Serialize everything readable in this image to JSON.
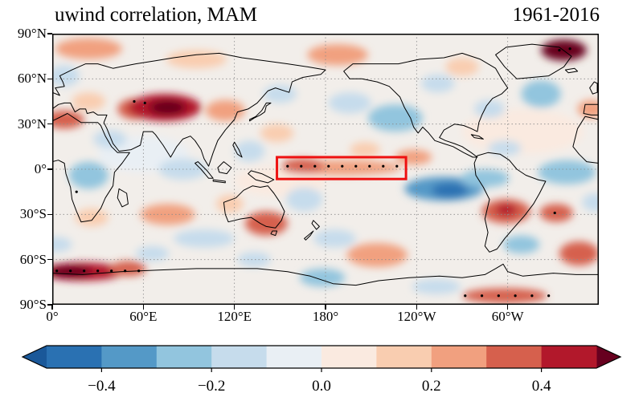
{
  "figure": {
    "title": "uwind correlation, MAM",
    "period": "1961-2016"
  },
  "chart_data": {
    "type": "heatmap",
    "variant": "filled-contour correlation map over world coastlines",
    "title": "uwind correlation, MAM",
    "annotation": "1961-2016",
    "variable": "uwind correlation",
    "season": "MAM",
    "projection": "equirectangular, longitude 0-360E left to right, latitude 90N top to 90S bottom",
    "x_axis": {
      "tick_lons": [
        0,
        60,
        120,
        180,
        240,
        300
      ],
      "tick_labels": [
        "0°",
        "60°E",
        "120°E",
        "180°",
        "120°W",
        "60°W"
      ]
    },
    "y_axis": {
      "tick_lats": [
        90,
        60,
        30,
        0,
        -30,
        -60,
        -90
      ],
      "tick_labels": [
        "90°N",
        "60°N",
        "30°N",
        "0°",
        "30°S",
        "60°S",
        "90°S"
      ]
    },
    "grid": {
      "show": true,
      "style": "dotted",
      "lat_step": 30,
      "lon_step": 60,
      "color": "#8a8a8a"
    },
    "base_color": "#f2eeea",
    "colorbar": {
      "orientation": "horizontal",
      "levels": [
        -0.5,
        -0.4,
        -0.3,
        -0.2,
        -0.1,
        0,
        0.1,
        0.2,
        0.3,
        0.4,
        0.5
      ],
      "colors": [
        "#2a71b2",
        "#5499c7",
        "#92c5de",
        "#c6dcec",
        "#e9eff4",
        "#faeae0",
        "#f9cdb0",
        "#f1a07f",
        "#d6604d",
        "#b2182b"
      ],
      "extend_low": "#1a5899",
      "extend_high": "#67001f",
      "tick_values": [
        -0.4,
        -0.2,
        0.0,
        0.2,
        0.4
      ],
      "tick_labels": [
        "−0.4",
        "−0.2",
        "0.0",
        "0.2",
        "0.4"
      ]
    },
    "highlight_box": {
      "lon_min": 148,
      "lon_max": 233,
      "lat_min": -6.5,
      "lat_max": 8,
      "color": "#ee1111",
      "meaning": "equatorial Pacific region outlined in red with stippled points inside"
    },
    "features": [
      {
        "lon": 310,
        "lat": 25,
        "rx": 40,
        "ry": 15,
        "v": 0.05
      },
      {
        "lon": 150,
        "lat": -8,
        "rx": 30,
        "ry": 10,
        "v": 0.08
      },
      {
        "lon": 60,
        "lat": 10,
        "rx": 30,
        "ry": 12,
        "v": -0.08
      },
      {
        "lon": 8,
        "lat": 33,
        "rx": 13,
        "ry": 6,
        "v": 0.35
      },
      {
        "lon": 24,
        "lat": 45,
        "rx": 11,
        "ry": 6,
        "v": 0.18
      },
      {
        "lon": 55,
        "lat": 40,
        "rx": 12,
        "ry": 7,
        "v": 0.3
      },
      {
        "lon": 74,
        "lat": 41,
        "rx": 24,
        "ry": 9,
        "v": 0.4
      },
      {
        "lon": 76,
        "lat": 41,
        "rx": 12,
        "ry": 5,
        "v": 0.5
      },
      {
        "lon": 114,
        "lat": 39,
        "rx": 13,
        "ry": 7,
        "v": 0.25
      },
      {
        "lon": 24,
        "lat": 80,
        "rx": 22,
        "ry": 7,
        "v": 0.28
      },
      {
        "lon": 95,
        "lat": 73,
        "rx": 20,
        "ry": 6,
        "v": 0.15
      },
      {
        "lon": 148,
        "lat": 24,
        "rx": 11,
        "ry": 6,
        "v": 0.15
      },
      {
        "lon": 188,
        "lat": 76,
        "rx": 20,
        "ry": 7,
        "v": 0.28
      },
      {
        "lon": 337,
        "lat": 79,
        "rx": 15,
        "ry": 7,
        "v": 0.5
      },
      {
        "lon": 270,
        "lat": 68,
        "rx": 11,
        "ry": 6,
        "v": 0.18
      },
      {
        "lon": 190,
        "lat": 1,
        "rx": 40,
        "ry": 5,
        "v": 0.25
      },
      {
        "lon": 165,
        "lat": 2,
        "rx": 14,
        "ry": 5,
        "v": 0.32
      },
      {
        "lon": 238,
        "lat": 8,
        "rx": 12,
        "ry": 5,
        "v": 0.2
      },
      {
        "lon": 299,
        "lat": -28,
        "rx": 16,
        "ry": 8,
        "v": 0.35
      },
      {
        "lon": 299,
        "lat": -27,
        "rx": 7,
        "ry": 4,
        "v": 0.45
      },
      {
        "lon": 332,
        "lat": -29,
        "rx": 11,
        "ry": 6,
        "v": 0.3
      },
      {
        "lon": 76,
        "lat": -30,
        "rx": 18,
        "ry": 7,
        "v": 0.25
      },
      {
        "lon": 26,
        "lat": -32,
        "rx": 11,
        "ry": 6,
        "v": 0.15
      },
      {
        "lon": 141,
        "lat": -36,
        "rx": 14,
        "ry": 8,
        "v": 0.3
      },
      {
        "lon": 117,
        "lat": -23,
        "rx": 9,
        "ry": 6,
        "v": 0.18
      },
      {
        "lon": 20,
        "lat": -68,
        "rx": 28,
        "ry": 6,
        "v": 0.45
      },
      {
        "lon": 12,
        "lat": -68,
        "rx": 14,
        "ry": 4,
        "v": 0.55
      },
      {
        "lon": 50,
        "lat": -66,
        "rx": 12,
        "ry": 5,
        "v": 0.3
      },
      {
        "lon": 214,
        "lat": -57,
        "rx": 20,
        "ry": 8,
        "v": 0.26
      },
      {
        "lon": 298,
        "lat": -84,
        "rx": 28,
        "ry": 5,
        "v": 0.38
      },
      {
        "lon": 347,
        "lat": -56,
        "rx": 13,
        "ry": 8,
        "v": 0.3
      },
      {
        "lon": 355,
        "lat": 40,
        "rx": 9,
        "ry": 6,
        "v": 0.22
      },
      {
        "lon": 206,
        "lat": 13,
        "rx": 10,
        "ry": 5,
        "v": 0.15
      },
      {
        "lon": 226,
        "lat": 34,
        "rx": 18,
        "ry": 9,
        "v": -0.28
      },
      {
        "lon": 196,
        "lat": 44,
        "rx": 14,
        "ry": 7,
        "v": -0.18
      },
      {
        "lon": 150,
        "lat": 50,
        "rx": 11,
        "ry": 6,
        "v": -0.12
      },
      {
        "lon": 24,
        "lat": -4,
        "rx": 13,
        "ry": 9,
        "v": -0.25
      },
      {
        "lon": 86,
        "lat": 0,
        "rx": 16,
        "ry": 7,
        "v": -0.15
      },
      {
        "lon": 258,
        "lat": -13,
        "rx": 26,
        "ry": 8,
        "v": -0.35
      },
      {
        "lon": 262,
        "lat": -14,
        "rx": 12,
        "ry": 5,
        "v": -0.45
      },
      {
        "lon": 285,
        "lat": -6,
        "rx": 16,
        "ry": 6,
        "v": -0.28
      },
      {
        "lon": 339,
        "lat": -2,
        "rx": 19,
        "ry": 8,
        "v": -0.28
      },
      {
        "lon": 322,
        "lat": 50,
        "rx": 13,
        "ry": 9,
        "v": -0.3
      },
      {
        "lon": 288,
        "lat": 40,
        "rx": 10,
        "ry": 6,
        "v": -0.15
      },
      {
        "lon": 254,
        "lat": 57,
        "rx": 11,
        "ry": 6,
        "v": -0.15
      },
      {
        "lon": 130,
        "lat": 12,
        "rx": 10,
        "ry": 7,
        "v": -0.2
      },
      {
        "lon": 166,
        "lat": -20,
        "rx": 12,
        "ry": 8,
        "v": -0.18
      },
      {
        "lon": 100,
        "lat": -46,
        "rx": 20,
        "ry": 6,
        "v": -0.2
      },
      {
        "lon": 186,
        "lat": -46,
        "rx": 14,
        "ry": 6,
        "v": -0.15
      },
      {
        "lon": 309,
        "lat": -50,
        "rx": 12,
        "ry": 6,
        "v": -0.25
      },
      {
        "lon": 8,
        "lat": 62,
        "rx": 10,
        "ry": 7,
        "v": -0.15
      },
      {
        "lon": 38,
        "lat": 20,
        "rx": 11,
        "ry": 6,
        "v": -0.12
      },
      {
        "lon": 178,
        "lat": -72,
        "rx": 15,
        "ry": 6,
        "v": -0.25
      },
      {
        "lon": 253,
        "lat": -78,
        "rx": 16,
        "ry": 5,
        "v": -0.2
      },
      {
        "lon": 66,
        "lat": -56,
        "rx": 11,
        "ry": 5,
        "v": -0.2
      },
      {
        "lon": 133,
        "lat": -60,
        "rx": 11,
        "ry": 5,
        "v": -0.15
      },
      {
        "lon": 298,
        "lat": 14,
        "rx": 11,
        "ry": 5,
        "v": -0.12
      },
      {
        "lon": 357,
        "lat": -22,
        "rx": 8,
        "ry": 6,
        "v": -0.15
      },
      {
        "lon": 3,
        "lat": -50,
        "rx": 10,
        "ry": 5,
        "v": -0.15
      }
    ],
    "stipple": [
      [
        155,
        2
      ],
      [
        164,
        2
      ],
      [
        173,
        2
      ],
      [
        182,
        2
      ],
      [
        191,
        2
      ],
      [
        200,
        2
      ],
      [
        209,
        2
      ],
      [
        218,
        2
      ],
      [
        227,
        2
      ],
      [
        54,
        45
      ],
      [
        61,
        44
      ],
      [
        3,
        -67.5
      ],
      [
        12,
        -67.5
      ],
      [
        21,
        -67.5
      ],
      [
        30,
        -67.5
      ],
      [
        39,
        -67.5
      ],
      [
        48,
        -67.5
      ],
      [
        57,
        -67.5
      ],
      [
        272,
        -84
      ],
      [
        283,
        -84
      ],
      [
        294,
        -84
      ],
      [
        305,
        -84
      ],
      [
        316,
        -84
      ],
      [
        327,
        -84
      ],
      [
        16,
        -15
      ],
      [
        331,
        -29
      ],
      [
        334,
        79
      ],
      [
        341,
        80
      ]
    ]
  }
}
